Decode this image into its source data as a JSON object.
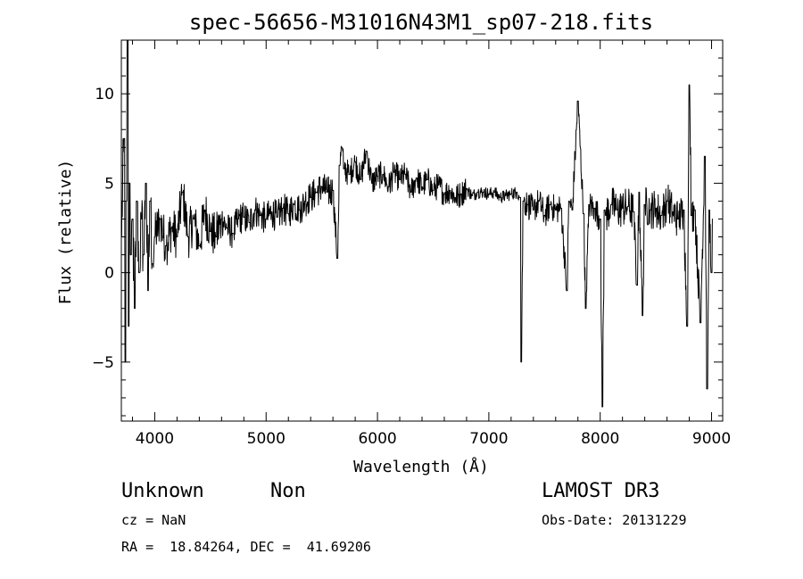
{
  "chart_data": {
    "type": "line",
    "title": "spec-56656-M31016N43M1_sp07-218.fits",
    "xlabel": "Wavelength (Å)",
    "ylabel": "Flux (relative)",
    "xlim": [
      3700,
      9100
    ],
    "ylim": [
      -8.3,
      13
    ],
    "xticks": [
      4000,
      5000,
      6000,
      7000,
      8000,
      9000
    ],
    "xtick_labels": [
      "4000",
      "5000",
      "6000",
      "7000",
      "8000",
      "9000"
    ],
    "yticks": [
      -5,
      0,
      5,
      10
    ],
    "ytick_labels": [
      "−5",
      "0",
      "5",
      "10"
    ],
    "grid": false,
    "series": [
      {
        "x": [
          3700,
          3725,
          3735,
          3745,
          3755,
          3765,
          3775,
          3785,
          3800,
          3820,
          3840,
          3860,
          3880,
          3900,
          3920,
          3940,
          3960,
          3980,
          4000,
          4050,
          4100,
          4150,
          4200,
          4250,
          4300,
          4350,
          4400,
          4450,
          4500,
          4550,
          4600,
          4650,
          4700,
          4750,
          4800,
          4850,
          4900,
          4950,
          5000,
          5050,
          5100,
          5150,
          5200,
          5250,
          5300,
          5350,
          5400,
          5450,
          5500,
          5550,
          5600,
          5640,
          5660,
          5680,
          5700,
          5750,
          5800,
          5850,
          5900,
          5950,
          6000,
          6050,
          6100,
          6150,
          6200,
          6250,
          6300,
          6350,
          6400,
          6450,
          6500,
          6550,
          6600,
          6650,
          6700,
          6750,
          6800,
          6850,
          6900,
          6950,
          7000,
          7050,
          7100,
          7150,
          7200,
          7250,
          7280,
          7290,
          7310,
          7350,
          7400,
          7450,
          7500,
          7550,
          7600,
          7650,
          7700,
          7720,
          7750,
          7800,
          7850,
          7870,
          7900,
          7950,
          8000,
          8020,
          8040,
          8050,
          8100,
          8150,
          8200,
          8250,
          8300,
          8330,
          8350,
          8380,
          8400,
          8450,
          8500,
          8550,
          8600,
          8650,
          8700,
          8750,
          8780,
          8800,
          8820,
          8850,
          8900,
          8940,
          8960,
          8980,
          9000,
          9010
        ],
        "y": [
          2,
          7.5,
          -5,
          4,
          13,
          -3,
          5,
          1,
          3,
          -2,
          4,
          0,
          3,
          1,
          5,
          -1,
          4,
          0.5,
          2,
          3,
          1.5,
          2.5,
          2,
          4.5,
          2,
          3,
          1.5,
          3.5,
          2.3,
          2,
          3,
          2.5,
          2.2,
          3,
          3.1,
          2.8,
          3.5,
          3.2,
          3,
          3.4,
          3.1,
          3.6,
          3.3,
          3.8,
          3.5,
          4,
          4.2,
          4.5,
          4.8,
          4.5,
          4.6,
          0.8,
          6,
          7,
          5.8,
          5.5,
          6.2,
          5.2,
          6.8,
          5,
          5.4,
          5.5,
          4.8,
          5.6,
          5.2,
          5.5,
          4.5,
          5.3,
          4.8,
          5.2,
          4.6,
          4.9,
          4.4,
          4.6,
          4.2,
          4.4,
          4.7,
          4.3,
          4.5,
          4.5,
          4.4,
          4.5,
          4.2,
          4.3,
          4.4,
          4.5,
          4.2,
          -5,
          4,
          3.8,
          3.5,
          4,
          3.2,
          3.8,
          3.5,
          3.6,
          -1,
          4,
          3.5,
          9.6,
          3.3,
          -2,
          3.8,
          3.6,
          3,
          -7.5,
          3.5,
          3.2,
          3.8,
          3.5,
          3.6,
          3.7,
          3.4,
          -0.7,
          4.5,
          -2.4,
          3.8,
          3.5,
          3.6,
          3.2,
          4,
          3.4,
          3,
          3.5,
          -3,
          10.5,
          3.2,
          3.5,
          -2.8,
          6.5,
          -6.5,
          3.5,
          0,
          3
        ]
      }
    ]
  },
  "annotations": {
    "object_class": "Unknown",
    "object_subclass": "Non",
    "cz": "cz = NaN",
    "coords": "RA =  18.84264, DEC =  41.69206",
    "survey": "LAMOST DR3",
    "obs_date": "Obs-Date: 20131229"
  }
}
